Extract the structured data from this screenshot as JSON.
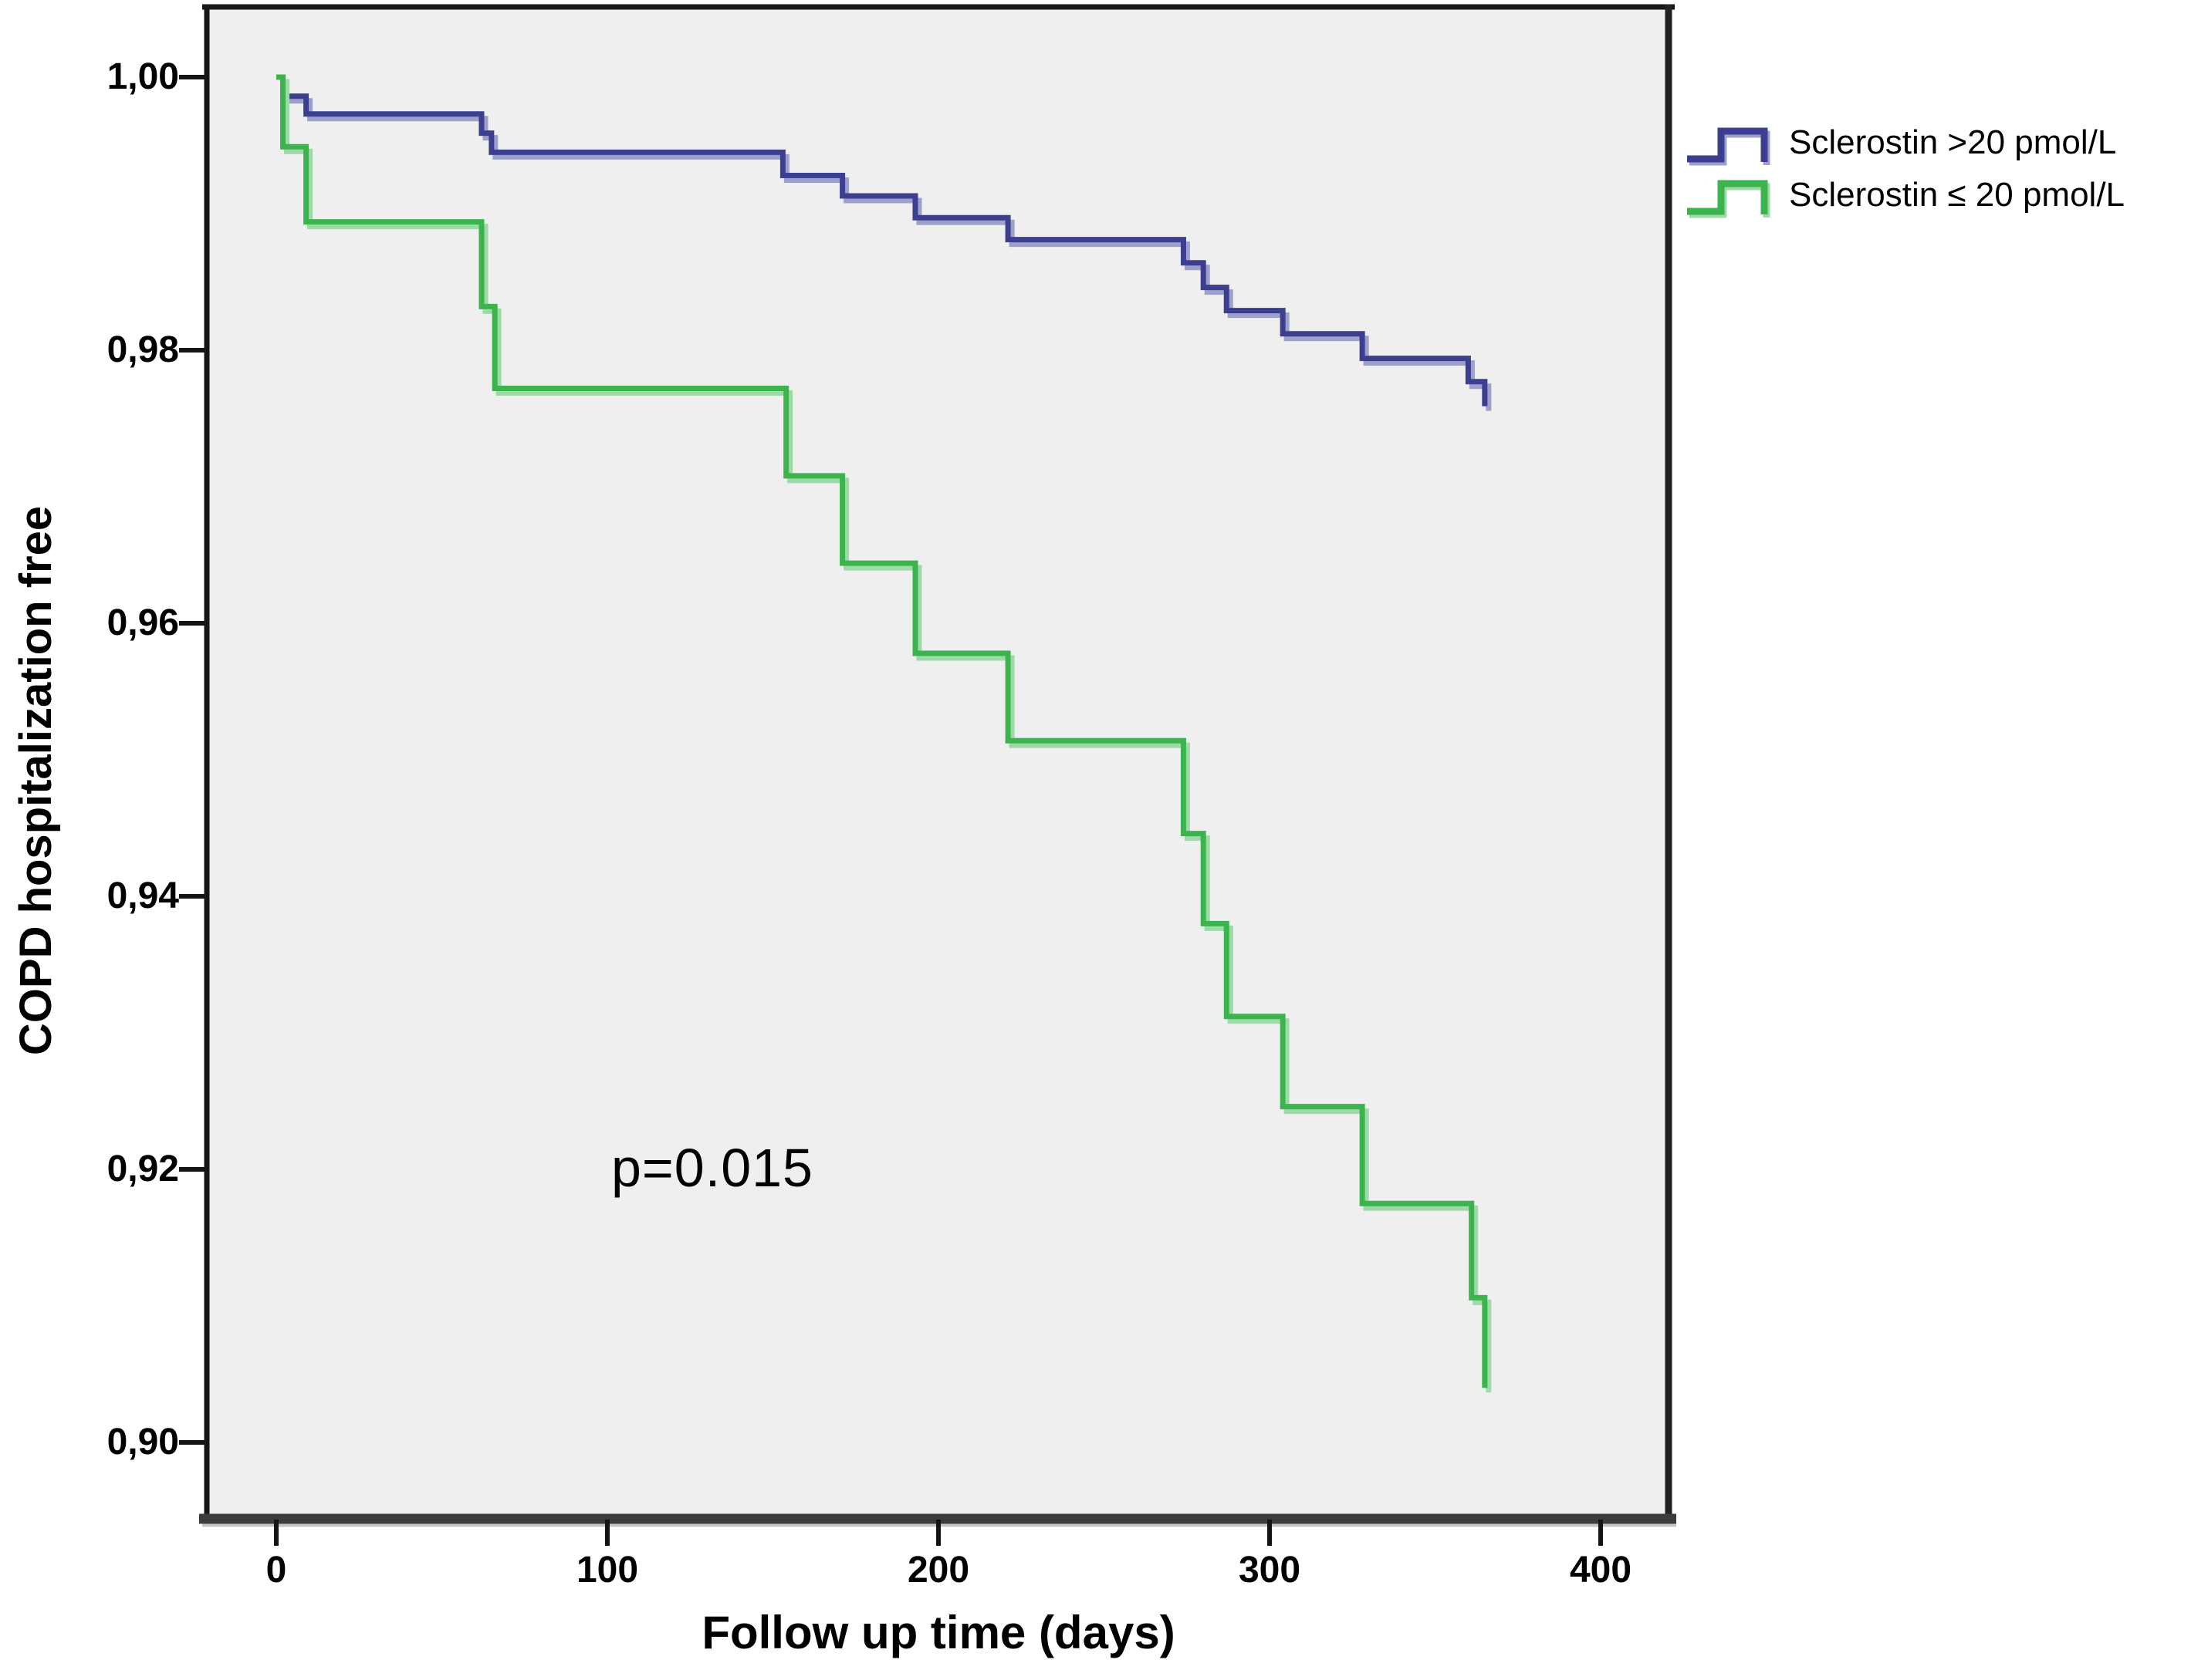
{
  "figure": {
    "background": "#ffffff",
    "plot_background": "#efefef",
    "frame_color": "#161616",
    "frame_bottom_color": "#3c3c3c"
  },
  "annotation": {
    "p_value": "p=0.015"
  },
  "chart_data": {
    "type": "step_line",
    "title": "",
    "xlabel": "Follow up time (days)",
    "ylabel": "COPD hospitalization free",
    "xlim": [
      -22,
      421
    ],
    "ylim": [
      0.894,
      1.005
    ],
    "x_ticks": [
      0,
      100,
      200,
      300,
      400
    ],
    "x_tick_labels": [
      "0",
      "100",
      "200",
      "300",
      "400"
    ],
    "y_ticks": [
      1.0,
      0.98,
      0.96,
      0.94,
      0.92,
      0.9
    ],
    "y_tick_labels": [
      "1,00",
      "0,98",
      "0,96",
      "0,94",
      "0,92",
      "0,90"
    ],
    "grid": false,
    "legend_position": "top-right-outside",
    "annotation": "p=0.015",
    "series": [
      {
        "name": "Sclerostin >20 pmol/L",
        "color": "#3c3f8f",
        "shadow_color": "#9ca0cb",
        "x": [
          0,
          2,
          9,
          62,
          65,
          153,
          171,
          193,
          221,
          274,
          280,
          287,
          304,
          328,
          360,
          365
        ],
        "y": [
          1.0,
          0.9986,
          0.9973,
          0.9959,
          0.9945,
          0.9928,
          0.9913,
          0.9897,
          0.9881,
          0.9864,
          0.9846,
          0.9829,
          0.9812,
          0.9794,
          0.9777,
          0.9759
        ]
      },
      {
        "name": "Sclerostin ≤ 20 pmol/L",
        "color": "#3cb44e",
        "shadow_color": "#9ed9a8",
        "x": [
          0,
          2,
          9,
          62,
          66,
          154,
          171,
          193,
          221,
          274,
          280,
          287,
          304,
          328,
          361,
          365
        ],
        "y": [
          1.0,
          0.9949,
          0.9894,
          0.9832,
          0.9772,
          0.9708,
          0.9644,
          0.9578,
          0.9514,
          0.9446,
          0.938,
          0.9312,
          0.9246,
          0.9175,
          0.9106,
          0.904
        ]
      }
    ]
  }
}
